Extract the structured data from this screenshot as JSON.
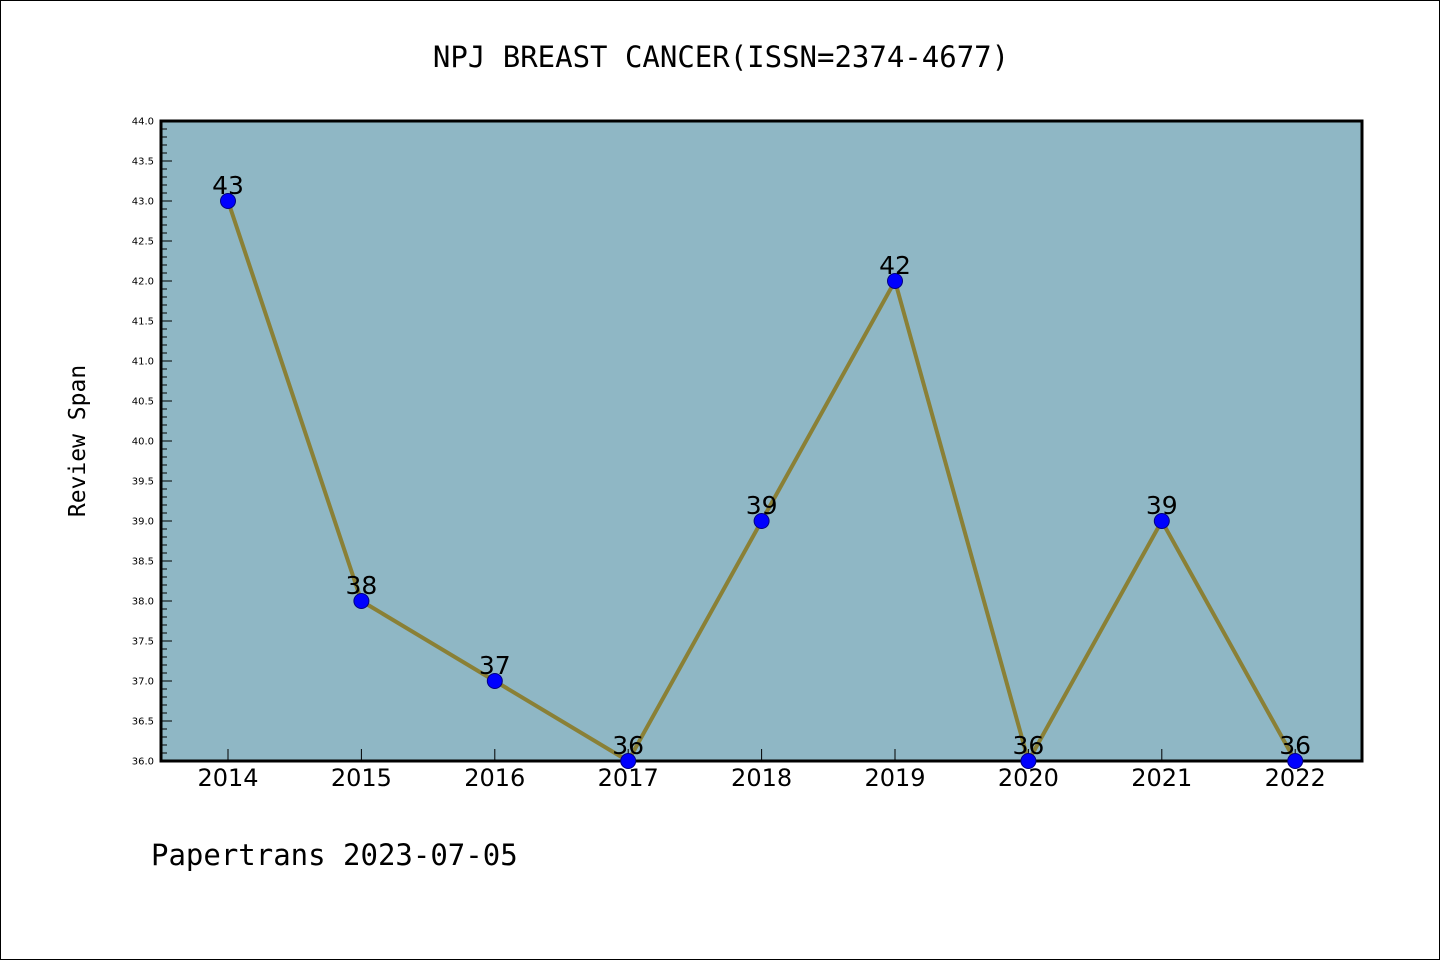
{
  "footer": {
    "text": "Papertrans 2023-07-05"
  },
  "chart_data": {
    "type": "line",
    "title": "NPJ BREAST CANCER(ISSN=2374-4677)",
    "xlabel": "",
    "ylabel": "Review Span",
    "x": [
      "2014",
      "2015",
      "2016",
      "2017",
      "2018",
      "2019",
      "2020",
      "2021",
      "2022"
    ],
    "series": [
      {
        "values": [
          43,
          38,
          37,
          36,
          39,
          42,
          36,
          39,
          36
        ],
        "data_labels": [
          "43",
          "38",
          "37",
          "36",
          "39",
          "42",
          "36",
          "39",
          "36"
        ]
      }
    ],
    "ylim": [
      36.0,
      44.0
    ],
    "yticks": [
      "36.0",
      "36.5",
      "37.0",
      "37.5",
      "38.0",
      "38.5",
      "39.0",
      "39.5",
      "40.0",
      "40.5",
      "41.0",
      "41.5",
      "42.0",
      "42.5",
      "43.0",
      "43.5",
      "44.0"
    ],
    "grid": false,
    "legend": "none",
    "colors": {
      "plot_background": "#8fb7c5",
      "line": "#8a8036",
      "marker_fill": "#0000ff",
      "marker_edge": "#000080"
    }
  }
}
